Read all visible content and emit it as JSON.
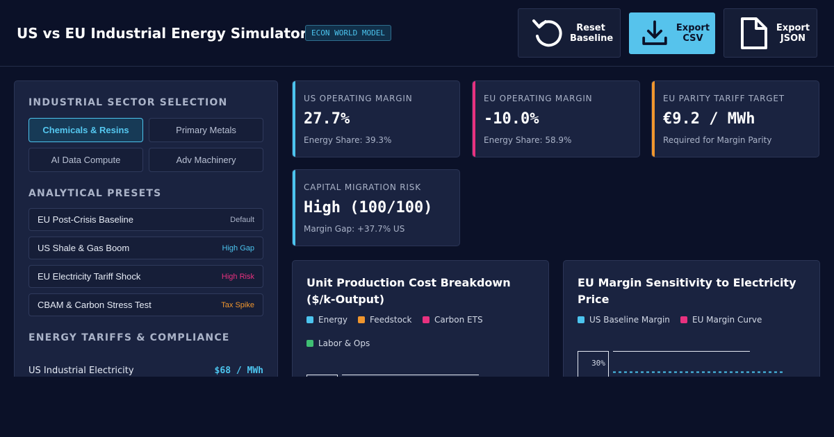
{
  "app": {
    "title": "US vs EU Industrial Energy Simulator",
    "badge": "ECON WORLD MODEL"
  },
  "toolbar": {
    "reset": {
      "line1": "Reset",
      "line2": "Baseline",
      "icon": "reset-icon"
    },
    "export_csv": {
      "line1": "Export",
      "line2": "CSV",
      "icon": "download-icon"
    },
    "export_json": {
      "line1": "Export",
      "line2": "JSON",
      "icon": "file-icon"
    }
  },
  "sidebar": {
    "sector_title": "INDUSTRIAL SECTOR SELECTION",
    "sectors": [
      "Chemicals & Resins",
      "Primary Metals",
      "AI Data Compute",
      "Adv Machinery"
    ],
    "selected_sector": "Chemicals & Resins",
    "presets_title": "ANALYTICAL PRESETS",
    "presets": [
      {
        "name": "EU Post-Crisis Baseline",
        "tag": "Default"
      },
      {
        "name": "US Shale & Gas Boom",
        "tag": "High Gap"
      },
      {
        "name": "EU Electricity Tariff Shock",
        "tag": "High Risk"
      },
      {
        "name": "CBAM & Carbon Stress Test",
        "tag": "Tax Spike"
      }
    ],
    "tariffs_title": "ENERGY TARIFFS & COMPLIANCE",
    "tariff": {
      "label": "US Industrial Electricity",
      "value": "$68 / MWh"
    }
  },
  "kpis": {
    "us_margin": {
      "title": "US OPERATING MARGIN",
      "value": "27.7%",
      "sub": "Energy Share: 39.3%"
    },
    "eu_margin": {
      "title": "EU OPERATING MARGIN",
      "value": "-10.0%",
      "sub": "Energy Share: 58.9%"
    },
    "parity": {
      "title": "EU PARITY TARIFF TARGET",
      "value": "€9.2 / MWh",
      "sub": "Required for Margin Parity"
    },
    "risk": {
      "title": "CAPITAL MIGRATION RISK",
      "value": "High (100/100)",
      "sub": "Margin Gap: +37.7% US"
    }
  },
  "cost_chart": {
    "title": "Unit Production Cost Breakdown ($/k-Output)",
    "legend": [
      "Energy",
      "Feedstock",
      "Carbon ETS",
      "Labor & Ops"
    ]
  },
  "sensitivity_chart": {
    "title": "EU Margin Sensitivity to Electricity Price",
    "legend": [
      "US Baseline Margin",
      "EU Margin Curve"
    ],
    "y_tick": "30%"
  },
  "colors": {
    "accent_blue": "#4cc4ee",
    "pink": "#e8317f",
    "orange": "#f0962e",
    "green": "#3fbf73",
    "background": "#0b1128",
    "card": "#1a2340"
  }
}
